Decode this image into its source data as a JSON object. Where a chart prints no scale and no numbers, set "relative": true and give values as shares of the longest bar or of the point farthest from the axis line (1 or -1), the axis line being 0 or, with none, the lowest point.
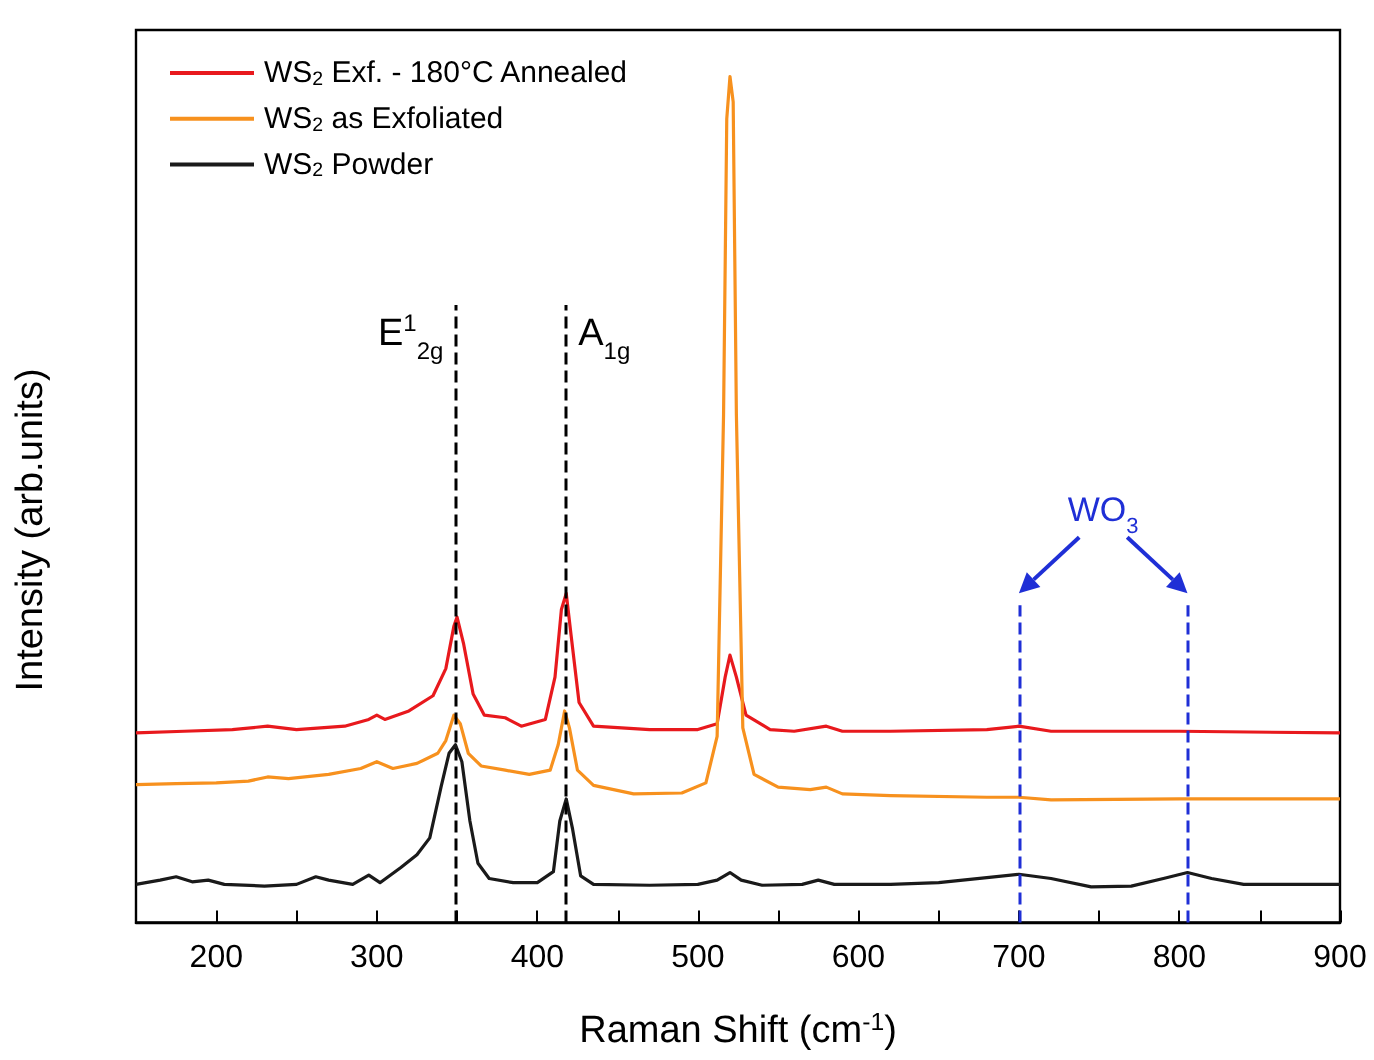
{
  "chart_data": {
    "type": "line",
    "relative": true,
    "xlabel": "Raman Shift (cm$^{-1}$)",
    "ylabel": "Intensity (arb.units)",
    "xlim": [
      150,
      900
    ],
    "xticks": [
      200,
      {
        "value": 250,
        "label": null
      },
      300,
      {
        "value": 350,
        "label": null
      },
      400,
      {
        "value": 450,
        "label": null
      },
      500,
      {
        "value": 550,
        "label": null
      },
      600,
      {
        "value": 650,
        "label": null
      },
      700,
      {
        "value": 750,
        "label": null
      },
      800,
      {
        "value": 850,
        "label": null
      },
      900
    ],
    "legend": "top left",
    "grid": false,
    "line_style": "solid",
    "series": [
      {
        "name": "WS$_{2}$ Exf. - 180°C Annealed",
        "color": "#e8191d",
        "x": [
          150,
          180,
          210,
          232,
          250,
          280,
          295,
          300,
          305,
          320,
          335,
          343,
          348,
          350,
          354,
          360,
          367,
          380,
          390,
          405,
          411,
          415,
          418,
          421,
          426,
          435,
          470,
          500,
          512,
          517,
          520,
          524,
          530,
          545,
          560,
          580,
          590,
          620,
          680,
          700,
          720,
          800,
          900
        ],
        "values": [
          0.224,
          0.226,
          0.228,
          0.232,
          0.228,
          0.232,
          0.24,
          0.245,
          0.24,
          0.25,
          0.268,
          0.3,
          0.35,
          0.361,
          0.33,
          0.27,
          0.245,
          0.242,
          0.232,
          0.24,
          0.29,
          0.37,
          0.389,
          0.34,
          0.26,
          0.232,
          0.228,
          0.228,
          0.235,
          0.29,
          0.316,
          0.29,
          0.245,
          0.228,
          0.226,
          0.232,
          0.226,
          0.226,
          0.228,
          0.232,
          0.226,
          0.226,
          0.224
        ]
      },
      {
        "name": "WS$_{2}$ as Exfoliated",
        "color": "#f7911e",
        "x": [
          150,
          175,
          200,
          220,
          232,
          245,
          270,
          290,
          300,
          310,
          325,
          338,
          343,
          348,
          352,
          357,
          365,
          380,
          395,
          408,
          413,
          417,
          420,
          425,
          435,
          460,
          490,
          505,
          512,
          516,
          518,
          520,
          522,
          524,
          528,
          535,
          550,
          570,
          580,
          590,
          620,
          680,
          700,
          720,
          800,
          900
        ],
        "values": [
          0.163,
          0.164,
          0.165,
          0.167,
          0.172,
          0.17,
          0.175,
          0.182,
          0.19,
          0.182,
          0.188,
          0.2,
          0.215,
          0.245,
          0.235,
          0.2,
          0.185,
          0.18,
          0.175,
          0.18,
          0.21,
          0.25,
          0.23,
          0.18,
          0.162,
          0.152,
          0.153,
          0.165,
          0.22,
          0.6,
          0.95,
          1.0,
          0.97,
          0.6,
          0.23,
          0.175,
          0.16,
          0.157,
          0.16,
          0.152,
          0.15,
          0.148,
          0.148,
          0.145,
          0.146,
          0.146
        ]
      },
      {
        "name": "WS$_{2}$ Powder",
        "color": "#1a1a1a",
        "x": [
          150,
          165,
          175,
          185,
          195,
          205,
          230,
          250,
          262,
          270,
          285,
          295,
          302,
          315,
          325,
          333,
          340,
          345,
          349,
          353,
          358,
          363,
          370,
          385,
          400,
          410,
          414,
          418,
          422,
          427,
          435,
          470,
          500,
          512,
          520,
          527,
          540,
          565,
          575,
          585,
          620,
          650,
          680,
          700,
          720,
          745,
          770,
          790,
          805,
          820,
          840,
          870,
          900
        ],
        "values": [
          0.045,
          0.05,
          0.054,
          0.048,
          0.05,
          0.045,
          0.043,
          0.045,
          0.054,
          0.05,
          0.045,
          0.056,
          0.047,
          0.065,
          0.08,
          0.1,
          0.16,
          0.2,
          0.21,
          0.19,
          0.12,
          0.07,
          0.052,
          0.047,
          0.047,
          0.06,
          0.12,
          0.146,
          0.11,
          0.055,
          0.045,
          0.044,
          0.045,
          0.05,
          0.059,
          0.05,
          0.044,
          0.045,
          0.05,
          0.045,
          0.045,
          0.047,
          0.053,
          0.057,
          0.052,
          0.042,
          0.043,
          0.052,
          0.059,
          0.052,
          0.045,
          0.045,
          0.045
        ]
      }
    ],
    "ref_lines": [
      {
        "axis": "x",
        "value": 349,
        "label": "E$^{1}$$_{2g}$",
        "color": "#000000",
        "line_style": "dashed"
      },
      {
        "axis": "x",
        "value": 418,
        "label": "A$_{1g}$",
        "color": "#000000",
        "line_style": "dashed"
      },
      {
        "axis": "x",
        "value": 700,
        "label": null,
        "color": "#1f2fd6",
        "line_style": "dashed"
      },
      {
        "axis": "x",
        "value": 805,
        "label": null,
        "color": "#1f2fd6",
        "line_style": "dashed"
      }
    ],
    "annotations": [
      "WO$_{3}$"
    ]
  }
}
